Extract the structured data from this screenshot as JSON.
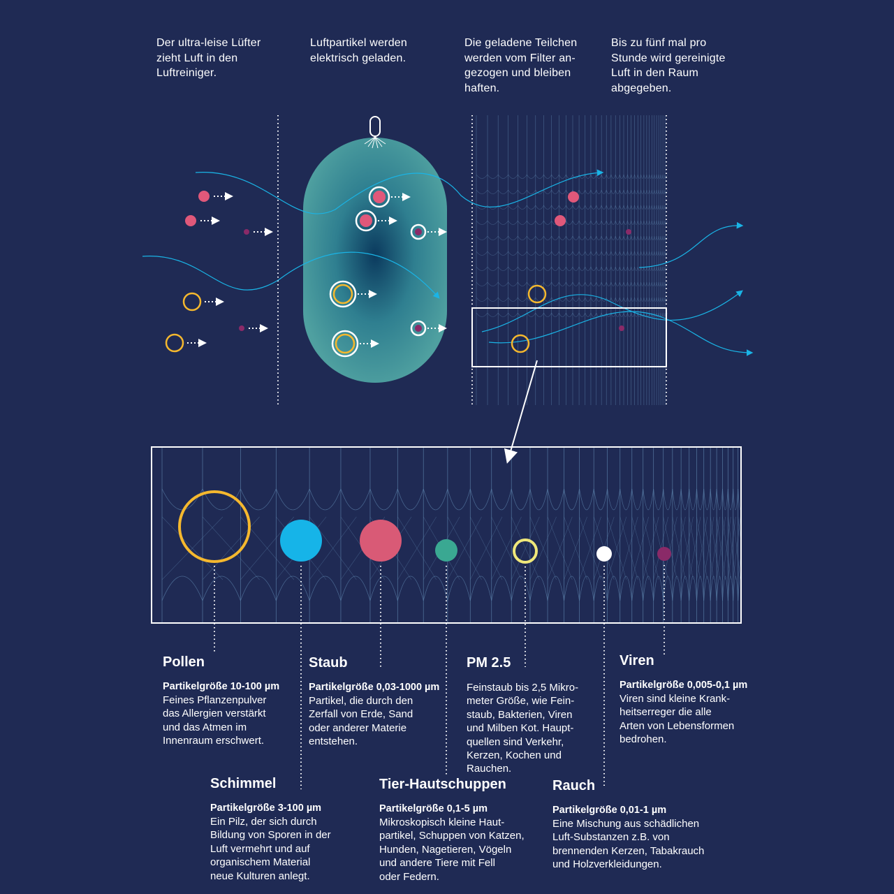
{
  "steps": [
    {
      "text": "Der ultra-leise Lüfter\nzieht Luft in den\nLuftreiniger."
    },
    {
      "text": "Luftpartikel werden\nelektrisch geladen."
    },
    {
      "text": "Die geladene Teilchen\nwerden vom Filter an-\ngezogen und bleiben\nhaften."
    },
    {
      "text": "Bis zu fünf mal pro\nStunde wird gereinigte\nLuft in den Raum\nabgegeben."
    }
  ],
  "particles": [
    {
      "name": "Pollen",
      "size": "Partikelgröße 10-100 µm",
      "desc": "Feines Pflanzenpulver\ndas Allergien verstärkt\nund das Atmen im\nInnenraum erschwert.",
      "color": "#f5b82e",
      "style": "ring"
    },
    {
      "name": "Schimmel",
      "size": "Partikelgröße 3-100 µm",
      "desc": "Ein Pilz, der sich durch\nBildung von Sporen in der\nLuft vermehrt und auf\norganischem Material\nneue Kulturen anlegt.",
      "color": "#16b4e8",
      "style": "fill"
    },
    {
      "name": "Staub",
      "size": "Partikelgröße 0,03-1000 µm",
      "desc": "Partikel, die durch den\nZerfall von Erde, Sand\noder anderer Materie\nentstehen.",
      "color": "#d95a76",
      "style": "fill"
    },
    {
      "name": "Tier-Hautschuppen",
      "size": "Partikelgröße 0,1-5 µm",
      "desc": "Mikroskopisch kleine Haut-\npartikel, Schuppen von Katzen,\nHunden, Nagetieren, Vögeln\nund andere Tiere mit Fell\noder Federn.",
      "color": "#3aa892",
      "style": "fill"
    },
    {
      "name": "PM 2.5",
      "size": "",
      "desc": "Feinstaub bis 2,5 Mikro-\nmeter Größe, wie Fein-\nstaub, Bakterien, Viren\nund Milben Kot. Haupt-\nquellen sind Verkehr,\nKerzen, Kochen und\nRauchen.",
      "color": "#efe77a",
      "style": "ring"
    },
    {
      "name": "Rauch",
      "size": "Partikelgröße 0,01-1 µm",
      "desc": "Eine Mischung aus schädlichen\nLuft-Substanzen z.B. von\nbrennenden Kerzen, Tabakrauch\nund Holzverkleidungen.",
      "color": "#ffffff",
      "style": "fill"
    },
    {
      "name": "Viren",
      "size": "Partikelgröße 0,005-0,1 µm",
      "desc": "Viren sind kleine Krank-\nheitserreger die alle\nArten von Lebensformen\nbedrohen.",
      "color": "#8a2a68",
      "style": "fill"
    }
  ],
  "colors": {
    "background": "#1f2a54",
    "airflow": "#1ab4e6",
    "capsule": "#4a9ea0",
    "pink": "#e0587a",
    "yellow": "#f5b82e",
    "purple": "#8a2a68"
  }
}
